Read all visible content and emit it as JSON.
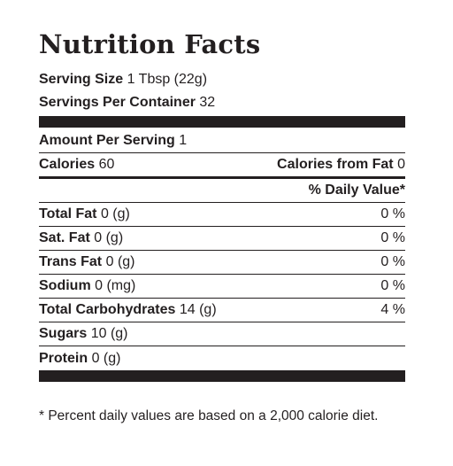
{
  "label": {
    "title": "Nutrition Facts",
    "serving_size_label": "Serving Size",
    "serving_size_value": "1 Tbsp (22g)",
    "servings_per_container_label": "Servings Per Container",
    "servings_per_container_value": "32",
    "amount_per_serving_label": "Amount Per Serving",
    "amount_per_serving_value": "1",
    "calories_label": "Calories",
    "calories_value": "60",
    "calories_from_fat_label": "Calories from Fat",
    "calories_from_fat_value": "0",
    "daily_value_header": "% Daily Value*",
    "nutrients": [
      {
        "name": "Total Fat",
        "amount": "0 (g)",
        "dv": "0 %"
      },
      {
        "name": "Sat. Fat",
        "amount": "0 (g)",
        "dv": "0 %"
      },
      {
        "name": "Trans Fat",
        "amount": "0 (g)",
        "dv": "0 %"
      },
      {
        "name": "Sodium",
        "amount": "0 (mg)",
        "dv": "0 %"
      },
      {
        "name": "Total Carbohydrates",
        "amount": "14 (g)",
        "dv": "4 %"
      },
      {
        "name": "Sugars",
        "amount": "10 (g)",
        "dv": ""
      },
      {
        "name": "Protein",
        "amount": "0 (g)",
        "dv": ""
      }
    ],
    "footnote": "* Percent daily values are based on a 2,000 calorie diet."
  }
}
